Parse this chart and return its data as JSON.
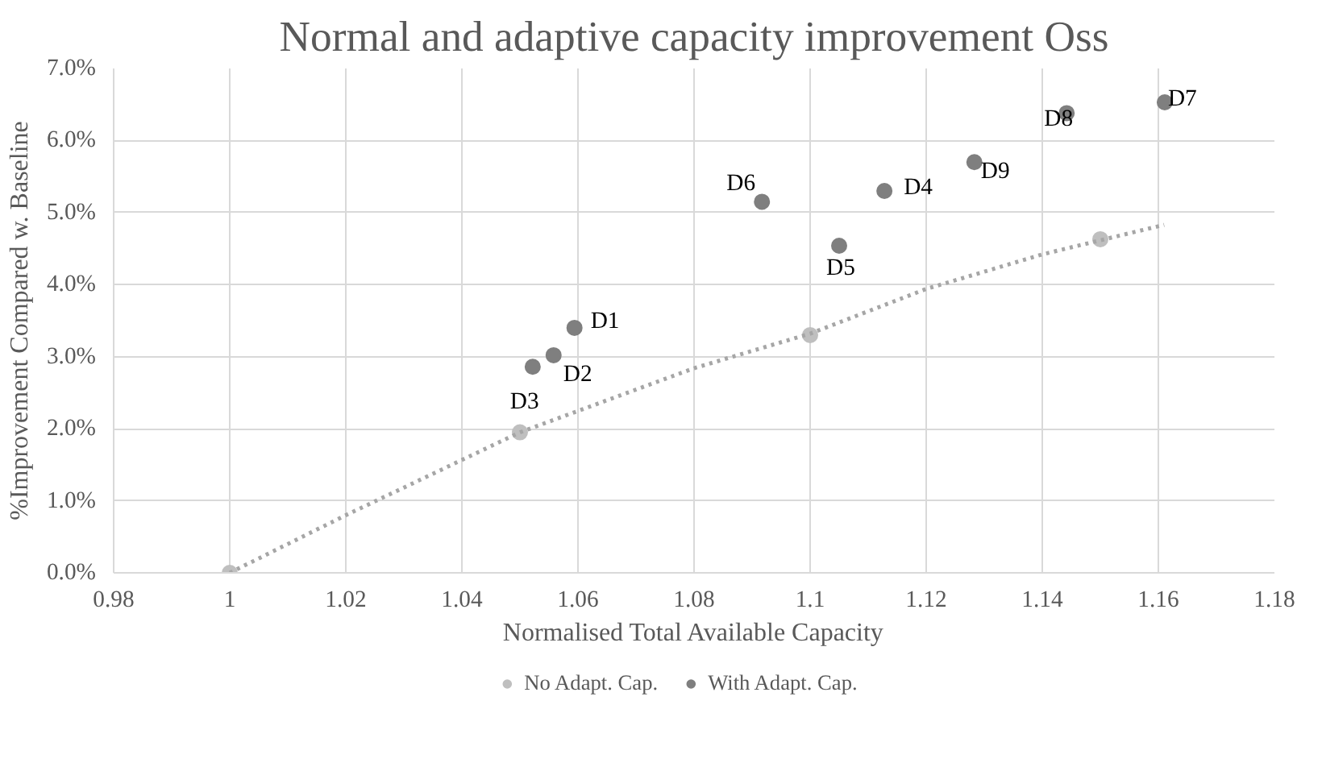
{
  "chart_data": {
    "type": "scatter",
    "title": "Normal and adaptive capacity improvement Oss",
    "xlabel": "Normalised Total Available Capacity",
    "ylabel": "%Improvement Compared w. Baseline",
    "xlim": [
      0.98,
      1.18
    ],
    "xticks": [
      0.98,
      1,
      1.02,
      1.04,
      1.06,
      1.08,
      1.1,
      1.12,
      1.14,
      1.16,
      1.18
    ],
    "ylim": [
      0,
      0.07
    ],
    "yticks": [
      {
        "value": 0,
        "label": "0.0%"
      },
      {
        "value": 0.01,
        "label": "1.0%"
      },
      {
        "value": 0.02,
        "label": "2.0%"
      },
      {
        "value": 0.03,
        "label": "3.0%"
      },
      {
        "value": 0.04,
        "label": "4.0%"
      },
      {
        "value": 0.05,
        "label": "5.0%"
      },
      {
        "value": 0.06,
        "label": "6.0%"
      },
      {
        "value": 0.07,
        "label": "7.0%"
      }
    ],
    "grid": true,
    "legend": "bottom",
    "series": [
      {
        "name": "No Adapt. Cap.",
        "color": "#bfbfbf",
        "marker": "circle",
        "x": [
          1,
          1.05,
          1.1,
          1.15
        ],
        "values": [
          0,
          0.0195,
          0.033,
          0.0463
        ]
      },
      {
        "name": "With Adapt. Cap.",
        "color": "#7f7f7f",
        "marker": "circle",
        "x": [
          1.0594,
          1.0558,
          1.0522,
          1.1128,
          1.105,
          1.0917,
          1.1611,
          1.1442,
          1.1283
        ],
        "values": [
          0.034,
          0.0302,
          0.0286,
          0.053,
          0.0454,
          0.0515,
          0.0653,
          0.0638,
          0.057
        ]
      },
      {
        "type": "line",
        "color": "#a6a6a6",
        "line_style": "dotted",
        "x": [
          1,
          1.02,
          1.05,
          1.08,
          1.1,
          1.12,
          1.14,
          1.161
        ],
        "values": [
          0,
          0.008,
          0.0195,
          0.0284,
          0.0332,
          0.0394,
          0.0442,
          0.0483
        ]
      }
    ],
    "annotations": [
      {
        "text": "D1",
        "x": 1.0594,
        "y": 0.034
      },
      {
        "text": "D2",
        "x": 1.0558,
        "y": 0.0302
      },
      {
        "text": "D3",
        "x": 1.0522,
        "y": 0.0286
      },
      {
        "text": "D4",
        "x": 1.1128,
        "y": 0.053
      },
      {
        "text": "D5",
        "x": 1.105,
        "y": 0.0454
      },
      {
        "text": "D6",
        "x": 1.0917,
        "y": 0.0515
      },
      {
        "text": "D7",
        "x": 1.1611,
        "y": 0.0653
      },
      {
        "text": "D8",
        "x": 1.1442,
        "y": 0.0638
      },
      {
        "text": "D9",
        "x": 1.1283,
        "y": 0.057
      }
    ]
  }
}
